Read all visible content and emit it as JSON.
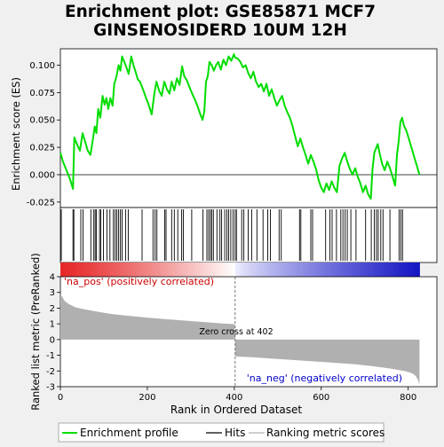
{
  "chart_data": {
    "type": "line",
    "title": "Enrichment plot: GSE85871 MCF7\nGINSENOSIDERD 10UM 12H",
    "es_panel": {
      "ylabel": "Enrichment score (ES)",
      "ylim": [
        -0.03,
        0.115
      ],
      "yticks": [
        -0.025,
        0.0,
        0.025,
        0.05,
        0.075,
        0.1
      ],
      "ytick_labels": [
        "-0.025",
        "0.000",
        "0.025",
        "0.050",
        "0.075",
        "0.100"
      ],
      "series": [
        {
          "name": "Enrichment profile",
          "color": "#00dd00",
          "x": [
            0,
            6,
            14,
            22,
            29,
            32,
            38,
            45,
            51,
            57,
            63,
            69,
            74,
            79,
            83,
            87,
            92,
            97,
            102,
            106,
            110,
            115,
            120,
            124,
            129,
            134,
            138,
            142,
            147,
            152,
            157,
            163,
            168,
            173,
            178,
            183,
            190,
            197,
            203,
            210,
            216,
            221,
            227,
            233,
            239,
            245,
            251,
            256,
            262,
            268,
            274,
            280,
            285,
            291,
            297,
            303,
            310,
            316,
            322,
            327,
            331,
            335,
            339,
            343,
            348,
            353,
            358,
            363,
            369,
            375,
            381,
            387,
            393,
            399,
            402,
            408,
            414,
            420,
            426,
            432,
            438,
            444,
            450,
            456,
            462,
            468,
            474,
            480,
            486,
            492,
            498,
            504,
            510,
            516,
            522,
            528,
            534,
            540,
            546,
            552,
            558,
            564,
            570,
            576,
            582,
            588,
            594,
            600,
            606,
            612,
            618,
            624,
            630,
            636,
            642,
            648,
            654,
            660,
            666,
            672,
            678,
            684,
            690,
            696,
            702,
            708,
            714,
            718,
            722,
            726,
            730,
            734,
            740,
            746,
            752,
            758,
            764,
            770,
            774,
            778,
            782,
            786,
            790,
            796,
            802,
            808,
            814,
            820,
            826
          ],
          "y": [
            0.02,
            0.012,
            0.004,
            -0.004,
            -0.013,
            0.034,
            0.028,
            0.022,
            0.038,
            0.03,
            0.022,
            0.018,
            0.03,
            0.044,
            0.038,
            0.06,
            0.052,
            0.072,
            0.064,
            0.07,
            0.06,
            0.07,
            0.063,
            0.083,
            0.09,
            0.1,
            0.095,
            0.108,
            0.103,
            0.098,
            0.092,
            0.108,
            0.1,
            0.094,
            0.087,
            0.085,
            0.078,
            0.07,
            0.064,
            0.055,
            0.074,
            0.085,
            0.077,
            0.072,
            0.085,
            0.078,
            0.074,
            0.085,
            0.077,
            0.088,
            0.082,
            0.099,
            0.09,
            0.086,
            0.08,
            0.074,
            0.068,
            0.062,
            0.055,
            0.05,
            0.058,
            0.085,
            0.09,
            0.103,
            0.1,
            0.095,
            0.1,
            0.103,
            0.096,
            0.105,
            0.1,
            0.108,
            0.104,
            0.11,
            0.107,
            0.106,
            0.103,
            0.098,
            0.1,
            0.093,
            0.088,
            0.094,
            0.085,
            0.08,
            0.083,
            0.076,
            0.083,
            0.072,
            0.078,
            0.07,
            0.063,
            0.068,
            0.072,
            0.063,
            0.057,
            0.052,
            0.044,
            0.035,
            0.026,
            0.033,
            0.025,
            0.018,
            0.01,
            0.018,
            0.012,
            0.005,
            -0.005,
            -0.012,
            -0.016,
            -0.008,
            -0.014,
            -0.006,
            -0.012,
            -0.016,
            0.008,
            0.015,
            0.02,
            0.012,
            0.005,
            0.0,
            0.006,
            -0.002,
            -0.008,
            -0.016,
            -0.01,
            -0.018,
            -0.022,
            0.005,
            0.02,
            0.024,
            0.028,
            0.02,
            0.01,
            0.004,
            0.012,
            0.006,
            -0.002,
            -0.01,
            0.018,
            0.03,
            0.048,
            0.052,
            0.045,
            0.04,
            0.032,
            0.024,
            0.016,
            0.008,
            0.0
          ]
        }
      ]
    },
    "hits_panel": {
      "label": "Hits",
      "hit_positions": [
        2,
        29,
        31,
        47,
        52,
        70,
        77,
        80,
        83,
        90,
        93,
        99,
        107,
        114,
        122,
        126,
        130,
        134,
        138,
        142,
        150,
        156,
        188,
        213,
        218,
        222,
        240,
        243,
        256,
        262,
        270,
        279,
        283,
        302,
        328,
        337,
        341,
        345,
        348,
        352,
        360,
        367,
        371,
        378,
        383,
        387,
        392,
        397,
        402,
        405,
        417,
        422,
        432,
        440,
        452,
        466,
        477,
        483,
        503,
        508,
        550,
        553,
        576,
        580,
        610,
        620,
        625,
        635,
        645,
        650,
        655,
        660,
        668,
        680,
        702,
        715,
        722,
        727,
        731,
        737,
        742,
        758,
        779,
        783,
        787
      ]
    },
    "ranking_panel": {
      "ylabel": "Ranked list metric (PreRanked)",
      "xlabel": "Rank in Ordered Dataset",
      "ylim": [
        -3,
        4
      ],
      "yticks": [
        -3,
        -2,
        -1,
        0,
        1,
        2,
        3,
        4
      ],
      "ytick_labels": [
        "-3",
        "-2",
        "-1",
        "0",
        "1",
        "2",
        "3",
        "4"
      ],
      "xlim": [
        0,
        866
      ],
      "xticks": [
        0,
        200,
        400,
        600,
        800
      ],
      "xtick_labels": [
        "0",
        "200",
        "400",
        "600",
        "800"
      ],
      "fill_color": "#b0b0b0",
      "metric_x": [
        0,
        5,
        10,
        20,
        35,
        50,
        80,
        120,
        160,
        200,
        240,
        280,
        320,
        360,
        401,
        402,
        405,
        440,
        480,
        520,
        560,
        600,
        640,
        680,
        720,
        760,
        790,
        805,
        812,
        818,
        823,
        826
      ],
      "metric_y": [
        2.85,
        2.7,
        2.45,
        2.25,
        2.05,
        1.95,
        1.8,
        1.62,
        1.5,
        1.4,
        1.3,
        1.22,
        1.14,
        1.05,
        0.98,
        -1.05,
        -1.08,
        -1.12,
        -1.2,
        -1.27,
        -1.35,
        -1.42,
        -1.5,
        -1.58,
        -1.7,
        -1.85,
        -2.0,
        -2.1,
        -2.2,
        -2.35,
        -2.6,
        -2.85
      ],
      "zero_cross": 402,
      "zero_cross_label": "Zero cross at 402",
      "pos_label": "'na_pos' (positively correlated)",
      "neg_label": "'na_neg' (negatively correlated)"
    },
    "n_genes": 826,
    "legend": {
      "placement": "bottom",
      "entries": [
        {
          "label": "Enrichment profile",
          "color": "#00dd00"
        },
        {
          "label": "Hits",
          "color": "#000000"
        },
        {
          "label": "Ranking metric scores",
          "color": "#b0b0b0"
        }
      ]
    }
  }
}
